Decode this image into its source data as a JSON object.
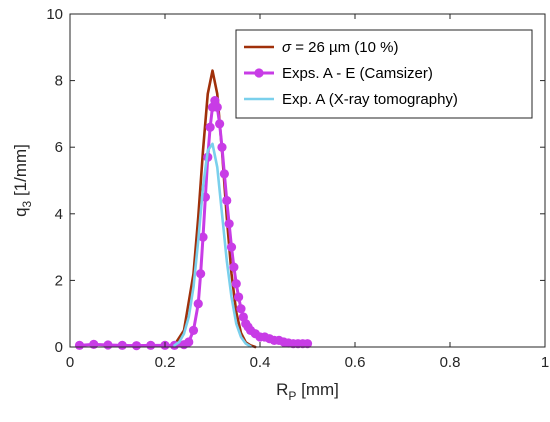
{
  "chart_data": {
    "type": "line",
    "xlabel": "R",
    "xlabel_sub": "P",
    "xlabel_unit": " [mm]",
    "ylabel": "q",
    "ylabel_sub": "3",
    "ylabel_unit": " [1/mm]",
    "xlim": [
      0,
      1
    ],
    "ylim": [
      0,
      10
    ],
    "xticks": [
      0,
      0.2,
      0.4,
      0.6,
      0.8,
      1
    ],
    "xtick_labels": [
      "0",
      "0.2",
      "0.4",
      "0.6",
      "0.8",
      "1"
    ],
    "yticks": [
      0,
      2,
      4,
      6,
      8,
      10
    ],
    "ytick_labels": [
      "0",
      "2",
      "4",
      "6",
      "8",
      "10"
    ],
    "grid": false,
    "legend_position": "top-right",
    "series": [
      {
        "name": "σ = 26 µm (10 %)",
        "legend_label": {
          "symbol": "σ",
          "rest": " = 26 µm (10 %)"
        },
        "color": "#A0300A",
        "marker": "none",
        "x": [
          0.22,
          0.24,
          0.26,
          0.27,
          0.28,
          0.29,
          0.3,
          0.31,
          0.32,
          0.33,
          0.34,
          0.35,
          0.36,
          0.37,
          0.38,
          0.39
        ],
        "y": [
          0.06,
          0.5,
          2.2,
          3.9,
          5.9,
          7.6,
          8.3,
          7.6,
          5.9,
          3.9,
          2.2,
          1.05,
          0.42,
          0.14,
          0.05,
          0.0
        ]
      },
      {
        "name": "Exps. A - E (Camsizer)",
        "color": "#C83CE6",
        "marker": "circle",
        "x": [
          0.02,
          0.05,
          0.08,
          0.11,
          0.14,
          0.17,
          0.2,
          0.22,
          0.24,
          0.25,
          0.26,
          0.27,
          0.275,
          0.28,
          0.285,
          0.29,
          0.295,
          0.3,
          0.305,
          0.31,
          0.315,
          0.32,
          0.325,
          0.33,
          0.335,
          0.34,
          0.345,
          0.35,
          0.355,
          0.36,
          0.365,
          0.37,
          0.375,
          0.38,
          0.39,
          0.4,
          0.41,
          0.42,
          0.43,
          0.44,
          0.45,
          0.46,
          0.47,
          0.48,
          0.49,
          0.5
        ],
        "y": [
          0.05,
          0.08,
          0.06,
          0.05,
          0.04,
          0.05,
          0.05,
          0.05,
          0.07,
          0.15,
          0.5,
          1.3,
          2.2,
          3.3,
          4.5,
          5.7,
          6.6,
          7.2,
          7.4,
          7.2,
          6.7,
          6.0,
          5.2,
          4.4,
          3.7,
          3.0,
          2.4,
          1.9,
          1.5,
          1.15,
          0.9,
          0.7,
          0.6,
          0.5,
          0.4,
          0.3,
          0.3,
          0.25,
          0.2,
          0.2,
          0.15,
          0.12,
          0.1,
          0.1,
          0.1,
          0.1
        ]
      },
      {
        "name": "Exp. A (X-ray tomography)",
        "color": "#7AD0EC",
        "marker": "none",
        "x": [
          0.22,
          0.23,
          0.24,
          0.25,
          0.26,
          0.27,
          0.28,
          0.29,
          0.3,
          0.31,
          0.32,
          0.33,
          0.34,
          0.35,
          0.36,
          0.37,
          0.38
        ],
        "y": [
          0.05,
          0.15,
          0.4,
          0.9,
          1.8,
          3.2,
          4.8,
          5.9,
          6.1,
          5.4,
          4.0,
          2.6,
          1.5,
          0.7,
          0.3,
          0.1,
          0.02
        ]
      }
    ]
  }
}
